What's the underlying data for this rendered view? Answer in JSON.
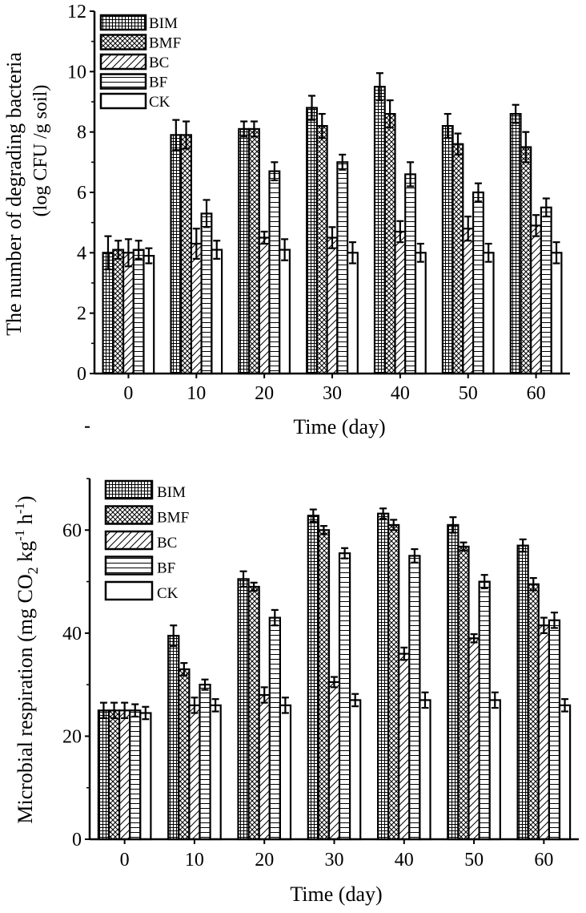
{
  "legend_entries": [
    "BIM",
    "BMF",
    "BC",
    "BF",
    "CK"
  ],
  "chart_data": [
    {
      "type": "bar",
      "title": "",
      "xlabel": "Time (day)",
      "ylabel_line1": "The number of degrading bacteria",
      "ylabel_line2": "(log CFU /g soil)",
      "ylim": [
        0,
        12
      ],
      "yticks": [
        "0",
        "2",
        "4",
        "6",
        "8",
        "10",
        "12"
      ],
      "categories": [
        "0",
        "10",
        "20",
        "30",
        "40",
        "50",
        "60"
      ],
      "series": [
        {
          "name": "BIM",
          "values": [
            4.0,
            7.9,
            8.1,
            8.8,
            9.5,
            8.2,
            8.6
          ],
          "errors": [
            0.55,
            0.5,
            0.25,
            0.4,
            0.45,
            0.4,
            0.3
          ]
        },
        {
          "name": "BMF",
          "values": [
            4.1,
            7.9,
            8.1,
            8.2,
            8.6,
            7.6,
            7.5
          ],
          "errors": [
            0.3,
            0.45,
            0.25,
            0.4,
            0.45,
            0.35,
            0.5
          ]
        },
        {
          "name": "BC",
          "values": [
            4.0,
            4.3,
            4.5,
            4.5,
            4.7,
            4.8,
            4.9
          ],
          "errors": [
            0.45,
            0.5,
            0.2,
            0.35,
            0.35,
            0.4,
            0.35
          ]
        },
        {
          "name": "BF",
          "values": [
            4.1,
            5.3,
            6.7,
            7.0,
            6.6,
            6.0,
            5.5
          ],
          "errors": [
            0.3,
            0.45,
            0.3,
            0.25,
            0.4,
            0.3,
            0.3
          ]
        },
        {
          "name": "CK",
          "values": [
            3.9,
            4.1,
            4.1,
            4.0,
            4.0,
            4.0,
            4.0
          ],
          "errors": [
            0.25,
            0.3,
            0.35,
            0.35,
            0.3,
            0.3,
            0.35
          ]
        }
      ]
    },
    {
      "type": "bar",
      "title": "",
      "xlabel": "Time (day)",
      "ylabel": "Microbial respiration (mg CO",
      "ylabel_sub": "2",
      "ylabel_mid": " kg",
      "ylabel_sup1": "-1",
      "ylabel_h": " h",
      "ylabel_sup2": "-1",
      "ylabel_end": ")",
      "ylim": [
        0,
        70
      ],
      "yticks": [
        "0",
        "20",
        "40",
        "60"
      ],
      "categories": [
        "0",
        "10",
        "20",
        "30",
        "40",
        "50",
        "60"
      ],
      "series": [
        {
          "name": "BIM",
          "values": [
            25.0,
            39.5,
            50.5,
            62.8,
            63.2,
            61.0,
            57.0
          ],
          "errors": [
            1.5,
            2.0,
            1.5,
            1.2,
            1.0,
            1.5,
            1.2
          ]
        },
        {
          "name": "BMF",
          "values": [
            25.0,
            33.0,
            49.0,
            60.0,
            61.0,
            56.8,
            49.5
          ],
          "errors": [
            1.5,
            1.2,
            0.8,
            0.8,
            1.0,
            0.8,
            1.2
          ]
        },
        {
          "name": "BC",
          "values": [
            25.0,
            26.0,
            28.0,
            30.5,
            36.0,
            39.0,
            41.5
          ],
          "errors": [
            1.5,
            1.5,
            1.5,
            1.0,
            1.2,
            0.8,
            1.5
          ]
        },
        {
          "name": "BF",
          "values": [
            25.0,
            30.0,
            43.0,
            55.5,
            55.0,
            50.0,
            42.5
          ],
          "errors": [
            1.2,
            1.0,
            1.5,
            1.0,
            1.3,
            1.3,
            1.5
          ]
        },
        {
          "name": "CK",
          "values": [
            24.5,
            26.0,
            26.0,
            27.0,
            27.0,
            27.0,
            26.0
          ],
          "errors": [
            1.2,
            1.2,
            1.5,
            1.2,
            1.5,
            1.5,
            1.2
          ]
        }
      ]
    }
  ]
}
